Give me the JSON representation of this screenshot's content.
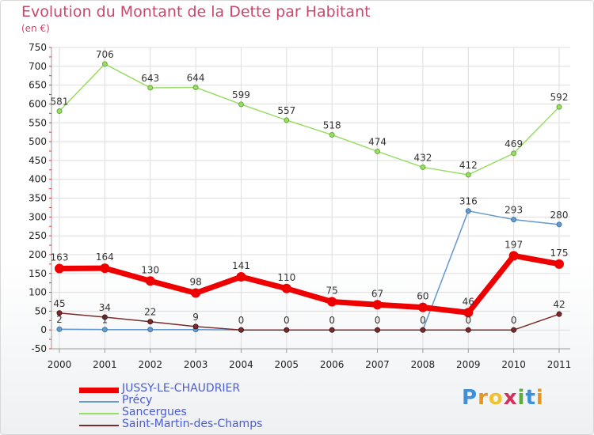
{
  "chart_data": {
    "type": "line",
    "title": "Evolution du Montant de la Dette par Habitant",
    "subtitle": "(en €)",
    "x": [
      "2000",
      "2001",
      "2002",
      "2003",
      "2004",
      "2005",
      "2006",
      "2007",
      "2008",
      "2009",
      "2010",
      "2011"
    ],
    "ylim": [
      -50,
      750
    ],
    "yticks": [
      -50,
      0,
      50,
      100,
      150,
      200,
      250,
      300,
      350,
      400,
      450,
      500,
      550,
      600,
      650,
      700,
      750
    ],
    "grid": true,
    "legend_position": "bottom-left",
    "series": [
      {
        "name": "JUSSY-LE-CHAUDRIER",
        "color": "#ee0000",
        "values": [
          163,
          164,
          130,
          98,
          141,
          110,
          75,
          67,
          60,
          46,
          197,
          175
        ]
      },
      {
        "name": "Précy",
        "color": "#6699cc",
        "values": [
          2,
          1,
          1,
          1,
          0,
          0,
          0,
          0,
          0,
          316,
          293,
          280
        ]
      },
      {
        "name": "Sancergues",
        "color": "#99dd66",
        "values": [
          581,
          706,
          643,
          644,
          599,
          557,
          518,
          474,
          432,
          412,
          469,
          592
        ]
      },
      {
        "name": "Saint-Martin-des-Champs",
        "color": "#7a2b2b",
        "values": [
          45,
          34,
          22,
          9,
          0,
          0,
          0,
          0,
          0,
          0,
          0,
          42
        ]
      }
    ],
    "data_labels": [
      {
        "text": "581",
        "series": 2,
        "i": 0
      },
      {
        "text": "706",
        "series": 2,
        "i": 1
      },
      {
        "text": "643",
        "series": 2,
        "i": 2
      },
      {
        "text": "644",
        "series": 2,
        "i": 3
      },
      {
        "text": "599",
        "series": 2,
        "i": 4
      },
      {
        "text": "557",
        "series": 2,
        "i": 5
      },
      {
        "text": "518",
        "series": 2,
        "i": 6
      },
      {
        "text": "474",
        "series": 2,
        "i": 7
      },
      {
        "text": "432",
        "series": 2,
        "i": 8
      },
      {
        "text": "412",
        "series": 2,
        "i": 9
      },
      {
        "text": "469",
        "series": 2,
        "i": 10
      },
      {
        "text": "592",
        "series": 2,
        "i": 11
      },
      {
        "text": "316",
        "series": 1,
        "i": 9
      },
      {
        "text": "293",
        "series": 1,
        "i": 10
      },
      {
        "text": "280",
        "series": 1,
        "i": 11
      },
      {
        "text": "163",
        "series": 0,
        "i": 0
      },
      {
        "text": "164",
        "series": 0,
        "i": 1
      },
      {
        "text": "130",
        "series": 0,
        "i": 2
      },
      {
        "text": "98",
        "series": 0,
        "i": 3
      },
      {
        "text": "141",
        "series": 0,
        "i": 4
      },
      {
        "text": "110",
        "series": 0,
        "i": 5
      },
      {
        "text": "75",
        "series": 0,
        "i": 6
      },
      {
        "text": "67",
        "series": 0,
        "i": 7
      },
      {
        "text": "60",
        "series": 0,
        "i": 8
      },
      {
        "text": "46",
        "series": 0,
        "i": 9
      },
      {
        "text": "197",
        "series": 0,
        "i": 10
      },
      {
        "text": "175",
        "series": 0,
        "i": 11
      },
      {
        "text": "45",
        "series": 3,
        "i": 0
      },
      {
        "text": "34",
        "series": 3,
        "i": 1
      },
      {
        "text": "22",
        "series": 3,
        "i": 2
      },
      {
        "text": "9",
        "series": 3,
        "i": 3
      },
      {
        "text": "0",
        "series": 3,
        "i": 4
      },
      {
        "text": "0",
        "series": 3,
        "i": 5
      },
      {
        "text": "0",
        "series": 3,
        "i": 6
      },
      {
        "text": "0",
        "series": 3,
        "i": 7
      },
      {
        "text": "0",
        "series": 3,
        "i": 8
      },
      {
        "text": "0",
        "series": 3,
        "i": 9
      },
      {
        "text": "0",
        "series": 3,
        "i": 10
      },
      {
        "text": "42",
        "series": 3,
        "i": 11
      },
      {
        "text": "2",
        "series": 1,
        "i": 0
      },
      {
        "text": "1",
        "series": 1,
        "i": 1
      }
    ]
  },
  "logo": {
    "letters": [
      "P",
      "r",
      "o",
      "x",
      "i",
      "t",
      "i"
    ],
    "colors": [
      "#3c8fd8",
      "#e8951e",
      "#f2c12e",
      "#d6305a",
      "#5dab3a",
      "#3c8fd8",
      "#e8951e"
    ]
  }
}
